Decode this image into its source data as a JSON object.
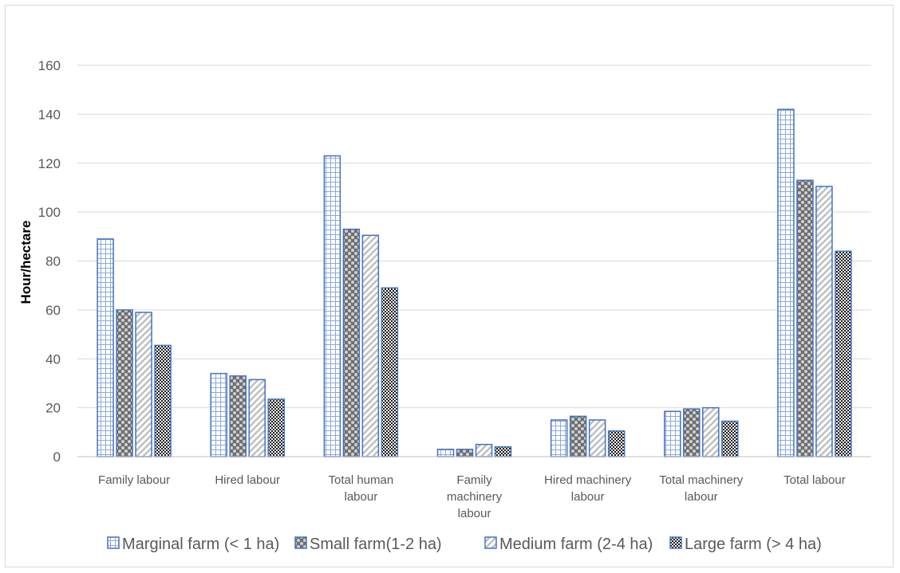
{
  "chart_data": {
    "type": "bar",
    "title": "",
    "xlabel": "",
    "ylabel": "Hour/hectare",
    "ylim": [
      0,
      160
    ],
    "yticks": [
      0,
      20,
      40,
      60,
      80,
      100,
      120,
      140,
      160
    ],
    "grid": true,
    "legend_position": "bottom",
    "categories": [
      [
        "Family labour"
      ],
      [
        "Hired labour"
      ],
      [
        "Total human",
        "labour"
      ],
      [
        "Family",
        "machinery",
        "labour"
      ],
      [
        "Hired machinery",
        "labour"
      ],
      [
        "Total machinery",
        "labour"
      ],
      [
        "Total labour"
      ]
    ],
    "series": [
      {
        "name": "Marginal farm (< 1 ha)",
        "pattern": "grid",
        "color": "#4472c4",
        "values": [
          89,
          34,
          123,
          3,
          15,
          18.5,
          142
        ]
      },
      {
        "name": "Small farm(1-2 ha)",
        "pattern": "dots",
        "color": "#4472c4",
        "values": [
          60,
          33,
          93,
          3,
          16.5,
          19.5,
          113
        ]
      },
      {
        "name": "Medium farm (2-4 ha)",
        "pattern": "diagonal",
        "color": "#4472c4",
        "values": [
          59,
          31.5,
          90.5,
          5,
          15,
          20,
          110.5
        ]
      },
      {
        "name": "Large farm (> 4 ha)",
        "pattern": "checker",
        "color": "#4472c4",
        "values": [
          45.5,
          23.5,
          69,
          4,
          10.5,
          14.5,
          84
        ]
      }
    ]
  }
}
